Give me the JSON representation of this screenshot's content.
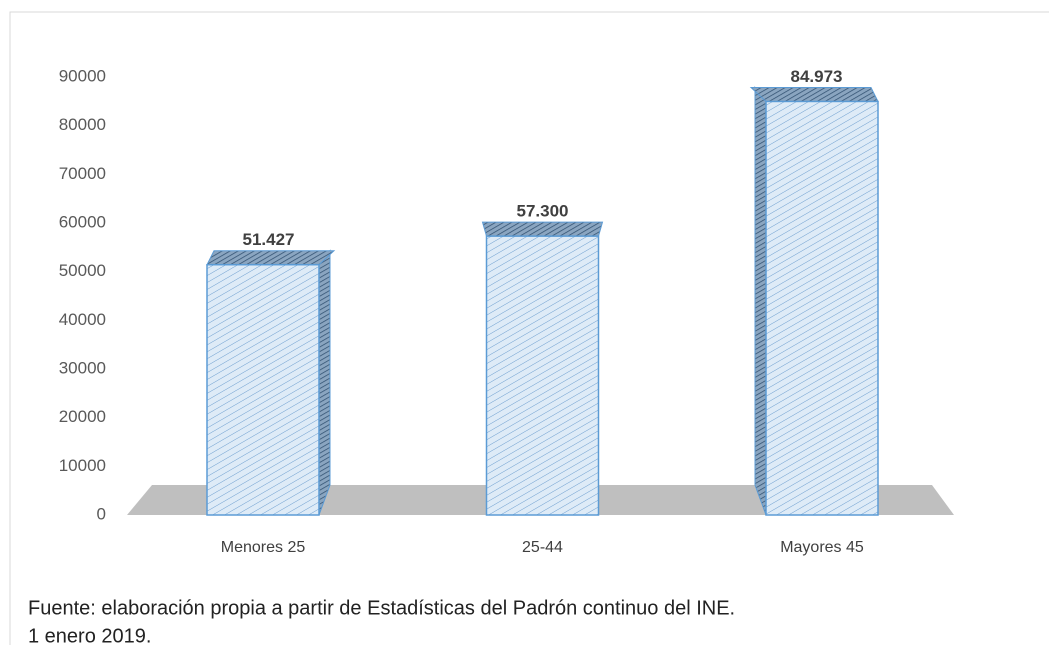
{
  "chart_data": {
    "type": "bar",
    "categories": [
      "Menores 25",
      "25-44",
      "Mayores 45"
    ],
    "values": [
      51427,
      57300,
      84973
    ],
    "value_labels": [
      "51.427",
      "57.300",
      "84.973"
    ],
    "color": "#deebf7",
    "edge_color": "#5b9bd5",
    "ylim": [
      0,
      90000
    ],
    "yticks": [
      0,
      10000,
      20000,
      30000,
      40000,
      50000,
      60000,
      70000,
      80000,
      90000
    ],
    "grid": false,
    "notes": [
      "Fuente: elaboración propia a partir de Estadísticas del Padrón continuo del INE.",
      "1 enero 2019."
    ]
  }
}
